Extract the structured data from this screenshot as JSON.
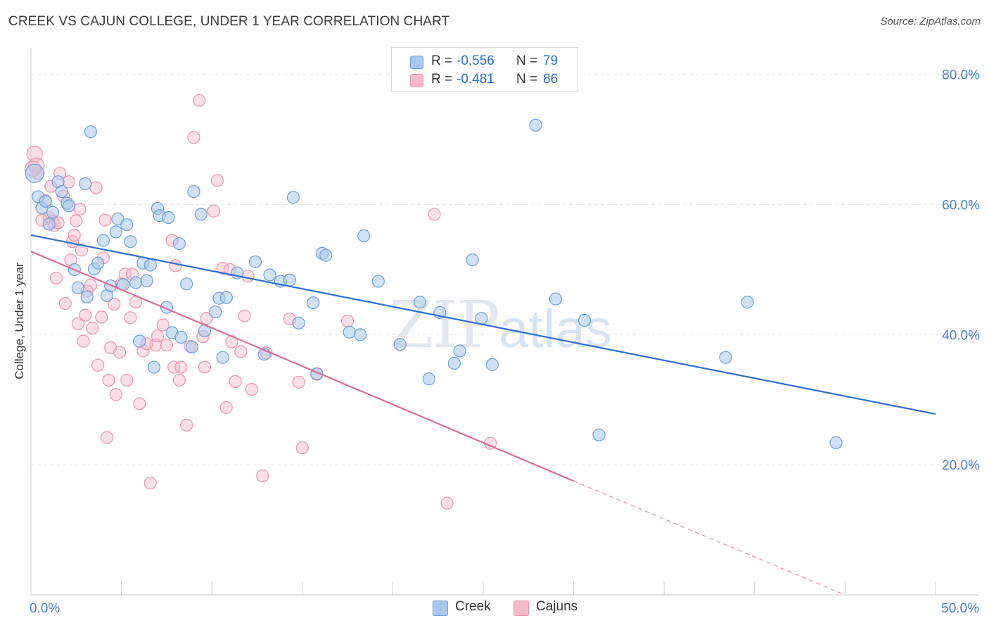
{
  "title": "CREEK VS CAJUN COLLEGE, UNDER 1 YEAR CORRELATION CHART",
  "source": "Source: ZipAtlas.com",
  "watermark": {
    "zip": "ZIP",
    "atlas": "atlas"
  },
  "colors": {
    "creek_fill": "#a9c8ef",
    "creek_stroke": "#6c9fdc",
    "creek_line": "#2f6fd0",
    "cajun_fill": "#f6b9cc",
    "cajun_stroke": "#ec93ae",
    "cajun_line": "#e06a97",
    "grid": "#e6e6e6",
    "axis_text": "#4a7fd0"
  },
  "legend": {
    "creek": {
      "r_label": "R =",
      "r_value": "-0.556",
      "n_label": "N =",
      "n_value": "79"
    },
    "cajun": {
      "r_label": "R =",
      "r_value": "-0.481",
      "n_label": "N =",
      "n_value": "86"
    }
  },
  "bottom_legend": {
    "creek": "Creek",
    "cajun": "Cajuns"
  },
  "chart_data": {
    "type": "scatter",
    "title": "CREEK VS CAJUN COLLEGE, UNDER 1 YEAR CORRELATION CHART",
    "xlabel": "",
    "ylabel": "College, Under 1 year",
    "xlim": [
      0,
      50
    ],
    "ylim": [
      0,
      83
    ],
    "x_tick_labels": [
      {
        "value": 0,
        "label": "0.0%"
      },
      {
        "value": 50,
        "label": "50.0%"
      }
    ],
    "y_tick_labels": [
      {
        "value": 20,
        "label": "20.0%"
      },
      {
        "value": 40,
        "label": "40.0%"
      },
      {
        "value": 60,
        "label": "60.0%"
      },
      {
        "value": 80,
        "label": "80.0%"
      }
    ],
    "grid": true,
    "legend_position": "top-center",
    "series": [
      {
        "name": "Creek",
        "r": -0.556,
        "n": 79,
        "trend": {
          "x": [
            0,
            50
          ],
          "y": [
            55.3,
            27.8
          ]
        },
        "points": [
          [
            0.2,
            64.8
          ],
          [
            0.4,
            61.2
          ],
          [
            0.6,
            59.5
          ],
          [
            0.8,
            60.5
          ],
          [
            1.0,
            57.0
          ],
          [
            1.2,
            58.8
          ],
          [
            1.5,
            63.5
          ],
          [
            1.7,
            62.0
          ],
          [
            2.0,
            60.2
          ],
          [
            2.1,
            59.8
          ],
          [
            2.4,
            50.0
          ],
          [
            2.6,
            47.2
          ],
          [
            3.0,
            63.2
          ],
          [
            3.1,
            45.8
          ],
          [
            3.3,
            71.2
          ],
          [
            3.5,
            50.1
          ],
          [
            3.7,
            51.0
          ],
          [
            4.0,
            54.5
          ],
          [
            4.2,
            46.0
          ],
          [
            4.4,
            47.5
          ],
          [
            4.7,
            55.8
          ],
          [
            4.8,
            57.8
          ],
          [
            5.1,
            47.7
          ],
          [
            5.3,
            56.9
          ],
          [
            5.5,
            54.3
          ],
          [
            5.8,
            48.0
          ],
          [
            6.0,
            39.0
          ],
          [
            6.2,
            51.0
          ],
          [
            6.4,
            48.3
          ],
          [
            6.6,
            50.7
          ],
          [
            6.8,
            35.0
          ],
          [
            7.0,
            59.4
          ],
          [
            7.1,
            58.3
          ],
          [
            7.5,
            44.2
          ],
          [
            7.6,
            58.0
          ],
          [
            7.8,
            40.3
          ],
          [
            8.2,
            54.0
          ],
          [
            8.3,
            39.6
          ],
          [
            8.6,
            47.8
          ],
          [
            8.9,
            38.1
          ],
          [
            9.0,
            62.0
          ],
          [
            9.4,
            58.5
          ],
          [
            9.6,
            40.6
          ],
          [
            10.2,
            43.5
          ],
          [
            10.4,
            45.6
          ],
          [
            10.6,
            36.5
          ],
          [
            10.8,
            45.7
          ],
          [
            11.4,
            49.5
          ],
          [
            12.4,
            51.2
          ],
          [
            12.9,
            37.0
          ],
          [
            13.2,
            49.2
          ],
          [
            13.8,
            48.2
          ],
          [
            14.3,
            48.4
          ],
          [
            14.5,
            61.1
          ],
          [
            14.8,
            41.8
          ],
          [
            15.6,
            44.9
          ],
          [
            15.8,
            34.0
          ],
          [
            16.1,
            52.5
          ],
          [
            16.3,
            52.2
          ],
          [
            17.6,
            40.4
          ],
          [
            18.2,
            40.0
          ],
          [
            18.4,
            55.2
          ],
          [
            19.2,
            48.2
          ],
          [
            20.4,
            38.5
          ],
          [
            21.5,
            45.0
          ],
          [
            22.0,
            33.2
          ],
          [
            22.6,
            43.4
          ],
          [
            23.4,
            35.6
          ],
          [
            23.7,
            37.5
          ],
          [
            24.4,
            51.5
          ],
          [
            24.9,
            42.5
          ],
          [
            25.5,
            35.4
          ],
          [
            27.9,
            72.2
          ],
          [
            29.0,
            45.5
          ],
          [
            30.6,
            42.2
          ],
          [
            31.4,
            24.6
          ],
          [
            38.4,
            36.5
          ],
          [
            39.6,
            45.0
          ],
          [
            44.5,
            23.4
          ]
        ]
      },
      {
        "name": "Cajuns",
        "r": -0.481,
        "n": 86,
        "trend": {
          "x": [
            0,
            30
          ],
          "y": [
            52.8,
            17.5
          ]
        },
        "trend_extension": {
          "x": [
            30,
            45
          ],
          "y": [
            17.5,
            0
          ]
        },
        "points": [
          [
            0.2,
            67.8
          ],
          [
            0.3,
            66.0
          ],
          [
            0.4,
            64.8
          ],
          [
            0.6,
            57.6
          ],
          [
            0.8,
            60.6
          ],
          [
            1.0,
            58.0
          ],
          [
            1.1,
            62.8
          ],
          [
            1.2,
            57.4
          ],
          [
            1.3,
            56.8
          ],
          [
            1.4,
            48.7
          ],
          [
            1.6,
            64.8
          ],
          [
            1.8,
            61.3
          ],
          [
            1.9,
            44.8
          ],
          [
            2.1,
            63.5
          ],
          [
            2.2,
            51.5
          ],
          [
            2.3,
            54.3
          ],
          [
            2.4,
            55.3
          ],
          [
            2.5,
            57.5
          ],
          [
            2.6,
            41.7
          ],
          [
            2.7,
            59.3
          ],
          [
            2.8,
            53.0
          ],
          [
            2.9,
            39.0
          ],
          [
            3.0,
            43.0
          ],
          [
            3.1,
            46.7
          ],
          [
            3.3,
            47.6
          ],
          [
            3.4,
            41.0
          ],
          [
            3.6,
            62.6
          ],
          [
            3.7,
            35.3
          ],
          [
            3.9,
            42.7
          ],
          [
            4.0,
            51.8
          ],
          [
            4.1,
            57.6
          ],
          [
            4.2,
            24.2
          ],
          [
            4.3,
            33.0
          ],
          [
            4.4,
            38.0
          ],
          [
            4.6,
            44.7
          ],
          [
            4.7,
            30.8
          ],
          [
            4.9,
            37.3
          ],
          [
            5.0,
            47.8
          ],
          [
            5.2,
            49.3
          ],
          [
            5.3,
            33.0
          ],
          [
            5.5,
            42.6
          ],
          [
            5.6,
            49.3
          ],
          [
            5.8,
            45.0
          ],
          [
            6.0,
            29.4
          ],
          [
            6.2,
            37.5
          ],
          [
            6.4,
            38.6
          ],
          [
            6.6,
            17.2
          ],
          [
            6.9,
            38.4
          ],
          [
            7.0,
            39.8
          ],
          [
            7.3,
            41.5
          ],
          [
            7.5,
            38.4
          ],
          [
            7.8,
            54.5
          ],
          [
            7.9,
            35.0
          ],
          [
            8.0,
            50.6
          ],
          [
            8.2,
            33.0
          ],
          [
            8.3,
            35.0
          ],
          [
            8.6,
            26.1
          ],
          [
            8.8,
            38.2
          ],
          [
            9.0,
            70.3
          ],
          [
            9.3,
            76.0
          ],
          [
            9.5,
            39.7
          ],
          [
            9.6,
            35.0
          ],
          [
            9.7,
            42.5
          ],
          [
            10.1,
            59.0
          ],
          [
            10.3,
            63.7
          ],
          [
            10.6,
            50.2
          ],
          [
            10.8,
            28.8
          ],
          [
            11.0,
            50.0
          ],
          [
            11.1,
            38.9
          ],
          [
            11.3,
            32.8
          ],
          [
            11.6,
            37.4
          ],
          [
            11.8,
            42.9
          ],
          [
            12.0,
            49.0
          ],
          [
            12.2,
            31.6
          ],
          [
            12.8,
            18.3
          ],
          [
            13.0,
            37.2
          ],
          [
            14.3,
            42.4
          ],
          [
            14.8,
            32.7
          ],
          [
            15.0,
            22.6
          ],
          [
            15.8,
            33.9
          ],
          [
            17.5,
            42.1
          ],
          [
            22.3,
            58.5
          ],
          [
            23.0,
            14.1
          ],
          [
            25.4,
            23.3
          ],
          [
            0.1,
            65.5
          ],
          [
            1.5,
            57.2
          ]
        ]
      }
    ]
  }
}
